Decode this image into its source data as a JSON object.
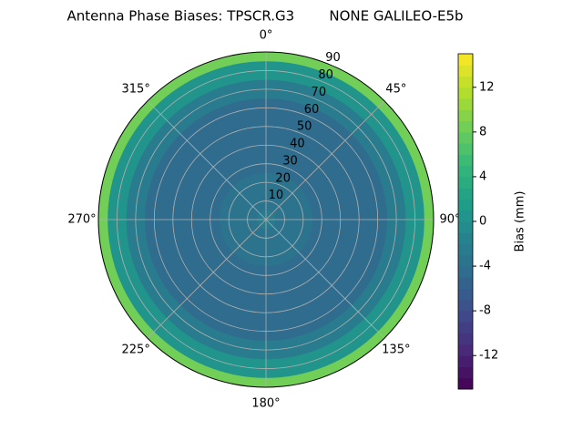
{
  "chart_data": {
    "type": "polar-contour",
    "title": "Antenna Phase Biases: TPSCR.G3        NONE GALILEO-E5b",
    "colorbar_label": "Bias (mm)",
    "colormap": "viridis",
    "zenith": [
      0,
      10,
      20,
      30,
      40,
      50,
      60,
      70,
      80,
      90
    ],
    "values": [
      -3,
      -3.5,
      -4,
      -4.5,
      -5,
      -5,
      -4.5,
      -3,
      0,
      8
    ],
    "rlim": [
      0,
      90
    ],
    "rticks": [
      10,
      20,
      30,
      40,
      50,
      60,
      70,
      80,
      90
    ],
    "thetaticks": [
      {
        "value": 0,
        "label": "0°"
      },
      {
        "value": 45,
        "label": "45°"
      },
      {
        "value": 90,
        "label": "90°"
      },
      {
        "value": 135,
        "label": "135°"
      },
      {
        "value": 180,
        "label": "180°"
      },
      {
        "value": 225,
        "label": "225°"
      },
      {
        "value": 270,
        "label": "270°"
      },
      {
        "value": 315,
        "label": "315°"
      }
    ],
    "clim": [
      -15,
      15
    ],
    "levels": 30,
    "cticks": [
      -12,
      -8,
      -4,
      0,
      4,
      8,
      12
    ],
    "grid": true
  }
}
